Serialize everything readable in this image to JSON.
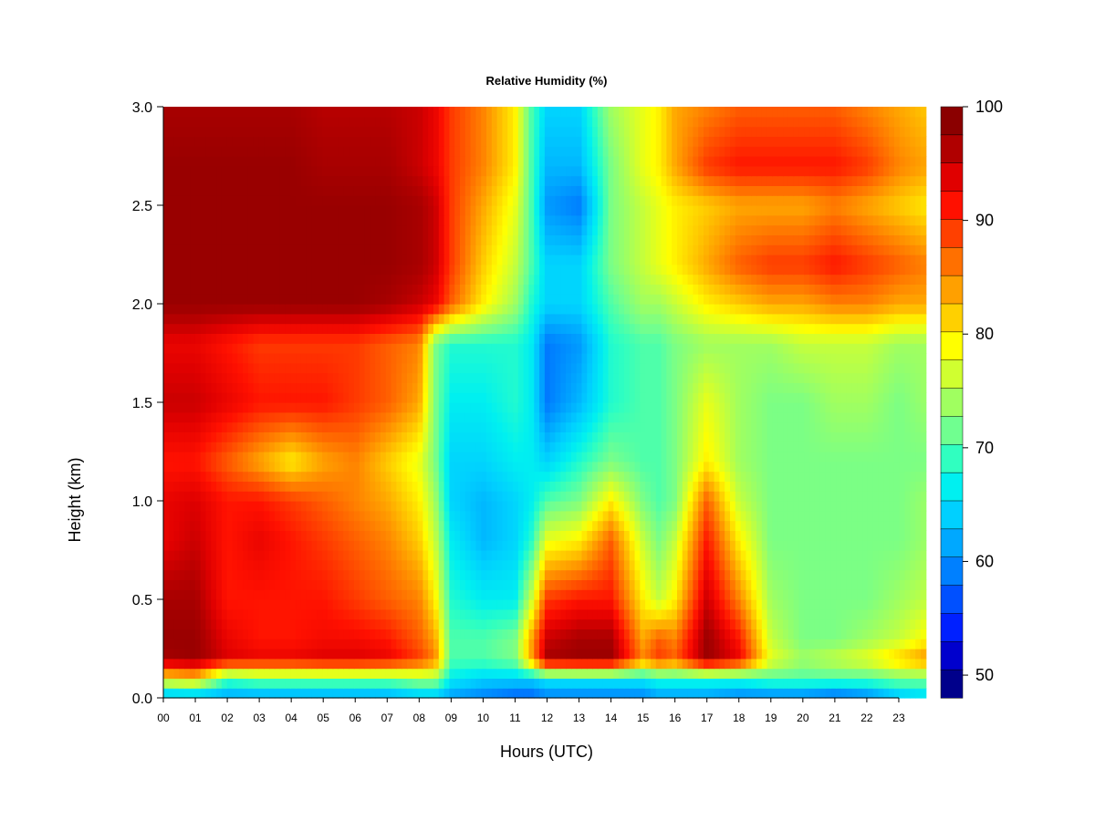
{
  "chart_data": {
    "type": "heatmap",
    "title": "Relative Humidity (%)",
    "xlabel": "Hours (UTC)",
    "ylabel": "Height (km)",
    "xlim": [
      0,
      24
    ],
    "ylim": [
      0.0,
      3.0
    ],
    "x_tick_labels": [
      "00",
      "01",
      "02",
      "03",
      "04",
      "05",
      "06",
      "07",
      "08",
      "09",
      "10",
      "11",
      "12",
      "13",
      "14",
      "15",
      "16",
      "17",
      "18",
      "19",
      "20",
      "21",
      "22",
      "23"
    ],
    "y_tick_labels": [
      "0.0",
      "0.5",
      "1.0",
      "1.5",
      "2.0",
      "2.5",
      "3.0"
    ],
    "colorbar": {
      "range": [
        48,
        100
      ],
      "tick_labels": [
        "50",
        "60",
        "70",
        "80",
        "90",
        "100"
      ],
      "tick_values": [
        50,
        60,
        70,
        80,
        90,
        100
      ],
      "colors": [
        "#00008b",
        "#0000cd",
        "#0020ff",
        "#0050ff",
        "#0080ff",
        "#00a8ff",
        "#00d0ff",
        "#00f0f0",
        "#30ffc0",
        "#70ff90",
        "#a0ff60",
        "#d0ff30",
        "#ffff00",
        "#ffd000",
        "#ffa000",
        "#ff7000",
        "#ff4000",
        "#ff1000",
        "#e00000",
        "#b00000",
        "#8b0000"
      ]
    },
    "heights_km": [
      0.0,
      0.1,
      0.2,
      0.3,
      0.5,
      0.8,
      1.0,
      1.2,
      1.5,
      1.8,
      2.0,
      2.2,
      2.5,
      2.7,
      3.0
    ],
    "hours": [
      0,
      1,
      2,
      3,
      4,
      5,
      6,
      7,
      8,
      8.5,
      9,
      10,
      11,
      11.5,
      12,
      13,
      14,
      15,
      15.5,
      16,
      17,
      18,
      19,
      20,
      21,
      22,
      23,
      24
    ],
    "values": [
      [
        60,
        60,
        60,
        60,
        60,
        60,
        60,
        60,
        62,
        62,
        60,
        58,
        56,
        56,
        58,
        58,
        58,
        58,
        60,
        60,
        60,
        58,
        58,
        58,
        56,
        58,
        62,
        64
      ],
      [
        80,
        82,
        70,
        72,
        72,
        72,
        72,
        72,
        74,
        74,
        66,
        64,
        64,
        64,
        66,
        66,
        66,
        66,
        68,
        68,
        68,
        68,
        70,
        70,
        70,
        70,
        72,
        72
      ],
      [
        98,
        99,
        95,
        94,
        94,
        95,
        95,
        94,
        90,
        86,
        70,
        70,
        72,
        84,
        98,
        99,
        99,
        86,
        90,
        88,
        99,
        94,
        78,
        74,
        76,
        78,
        82,
        86
      ],
      [
        99,
        99,
        94,
        92,
        92,
        93,
        93,
        92,
        88,
        84,
        70,
        70,
        72,
        84,
        96,
        98,
        98,
        84,
        88,
        86,
        99,
        92,
        76,
        72,
        72,
        74,
        76,
        80
      ],
      [
        98,
        98,
        92,
        92,
        92,
        92,
        90,
        88,
        86,
        80,
        68,
        66,
        66,
        76,
        90,
        92,
        92,
        80,
        76,
        80,
        96,
        86,
        74,
        72,
        72,
        72,
        74,
        76
      ],
      [
        94,
        96,
        92,
        94,
        92,
        90,
        88,
        86,
        82,
        76,
        66,
        62,
        64,
        68,
        78,
        80,
        88,
        76,
        72,
        76,
        92,
        80,
        72,
        72,
        72,
        72,
        72,
        74
      ],
      [
        94,
        95,
        92,
        92,
        90,
        88,
        86,
        84,
        80,
        74,
        64,
        62,
        64,
        66,
        70,
        72,
        80,
        72,
        70,
        72,
        88,
        76,
        72,
        72,
        72,
        72,
        72,
        74
      ],
      [
        92,
        92,
        88,
        84,
        80,
        84,
        86,
        82,
        78,
        72,
        64,
        64,
        66,
        66,
        64,
        68,
        72,
        70,
        70,
        72,
        80,
        74,
        72,
        72,
        72,
        72,
        72,
        72
      ],
      [
        96,
        96,
        94,
        92,
        92,
        92,
        90,
        88,
        84,
        72,
        66,
        66,
        68,
        66,
        58,
        62,
        68,
        70,
        70,
        72,
        78,
        74,
        72,
        72,
        74,
        74,
        72,
        74
      ],
      [
        94,
        94,
        92,
        90,
        90,
        90,
        90,
        88,
        86,
        72,
        68,
        68,
        68,
        66,
        58,
        60,
        68,
        70,
        70,
        72,
        74,
        74,
        74,
        76,
        76,
        76,
        74,
        74
      ],
      [
        99,
        99,
        99,
        99,
        99,
        99,
        99,
        98,
        96,
        94,
        88,
        80,
        74,
        68,
        64,
        64,
        70,
        74,
        74,
        76,
        80,
        82,
        84,
        84,
        86,
        86,
        84,
        84
      ],
      [
        99,
        99,
        99,
        99,
        99,
        99,
        99,
        99,
        98,
        96,
        90,
        82,
        76,
        70,
        64,
        64,
        72,
        76,
        78,
        80,
        84,
        88,
        90,
        90,
        92,
        90,
        88,
        86
      ],
      [
        99,
        99,
        99,
        99,
        99,
        99,
        99,
        99,
        98,
        96,
        90,
        84,
        78,
        70,
        60,
        58,
        72,
        76,
        78,
        80,
        82,
        84,
        84,
        84,
        86,
        84,
        82,
        80
      ],
      [
        99,
        99,
        99,
        99,
        99,
        98,
        98,
        98,
        96,
        94,
        90,
        86,
        80,
        70,
        62,
        62,
        72,
        78,
        80,
        84,
        90,
        92,
        92,
        92,
        92,
        90,
        86,
        84
      ],
      [
        98,
        98,
        98,
        98,
        98,
        97,
        97,
        97,
        96,
        94,
        90,
        86,
        80,
        70,
        64,
        64,
        74,
        78,
        80,
        84,
        86,
        88,
        88,
        88,
        88,
        86,
        84,
        82
      ]
    ]
  }
}
